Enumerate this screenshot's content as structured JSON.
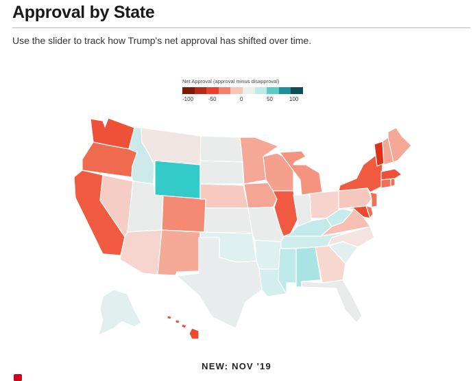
{
  "header": {
    "title": "Approval by State",
    "subtitle": "Use the slider to track how Trump's net approval has shifted over time."
  },
  "legend": {
    "title": "Net Approval (approval minus disapproval)",
    "ticks": [
      "-100",
      "-50",
      "0",
      "50",
      "100"
    ],
    "colors": [
      "#7a1a0c",
      "#b52a15",
      "#e8402a",
      "#f4806a",
      "#f8c4b8",
      "#eeeeee",
      "#bfe8e8",
      "#5cc9c9",
      "#1f8f95",
      "#0d4d55"
    ]
  },
  "map": {
    "date_label": "NEW: NOV '19",
    "states": [
      {
        "code": "WA",
        "color": "#ef5038"
      },
      {
        "code": "OR",
        "color": "#f06a50"
      },
      {
        "code": "CA",
        "color": "#f05a40"
      },
      {
        "code": "ID",
        "color": "#cdeaea"
      },
      {
        "code": "NV",
        "color": "#f6cdc5"
      },
      {
        "code": "MT",
        "color": "#efe5e3"
      },
      {
        "code": "WY",
        "color": "#33cbca"
      },
      {
        "code": "UT",
        "color": "#e9ebeb"
      },
      {
        "code": "AZ",
        "color": "#f6d5ce"
      },
      {
        "code": "CO",
        "color": "#f48a74"
      },
      {
        "code": "NM",
        "color": "#f5aa98"
      },
      {
        "code": "ND",
        "color": "#eaecec"
      },
      {
        "code": "SD",
        "color": "#eaecec"
      },
      {
        "code": "NE",
        "color": "#f6cabf"
      },
      {
        "code": "KS",
        "color": "#eaecec"
      },
      {
        "code": "OK",
        "color": "#dff0f0"
      },
      {
        "code": "TX",
        "color": "#e9ecec"
      },
      {
        "code": "MN",
        "color": "#f6a896"
      },
      {
        "code": "IA",
        "color": "#f5a594"
      },
      {
        "code": "MO",
        "color": "#eaecec"
      },
      {
        "code": "AR",
        "color": "#dff0f0"
      },
      {
        "code": "LA",
        "color": "#d3eeee"
      },
      {
        "code": "WI",
        "color": "#f5a08d"
      },
      {
        "code": "IL",
        "color": "#f05a40"
      },
      {
        "code": "MI",
        "color": "#f4937e"
      },
      {
        "code": "IN",
        "color": "#e9ebeb"
      },
      {
        "code": "OH",
        "color": "#f6d3cc"
      },
      {
        "code": "KY",
        "color": "#c3eaea"
      },
      {
        "code": "TN",
        "color": "#cdeded"
      },
      {
        "code": "MS",
        "color": "#bfe8e8"
      },
      {
        "code": "AL",
        "color": "#a9e3e3"
      },
      {
        "code": "GA",
        "color": "#f6d8d1"
      },
      {
        "code": "FL",
        "color": "#e9ebeb"
      },
      {
        "code": "SC",
        "color": "#e3eeee"
      },
      {
        "code": "NC",
        "color": "#f4e4e1"
      },
      {
        "code": "VA",
        "color": "#f5bfb3"
      },
      {
        "code": "WV",
        "color": "#c6ebeb"
      },
      {
        "code": "PA",
        "color": "#f6c8bd"
      },
      {
        "code": "NY",
        "color": "#f05a40"
      },
      {
        "code": "NJ",
        "color": "#f07055"
      },
      {
        "code": "MD",
        "color": "#ee4a30"
      },
      {
        "code": "DE",
        "color": "#f07055"
      },
      {
        "code": "CT",
        "color": "#f07055"
      },
      {
        "code": "RI",
        "color": "#f07055"
      },
      {
        "code": "MA",
        "color": "#ee5038"
      },
      {
        "code": "VT",
        "color": "#e0301a"
      },
      {
        "code": "NH",
        "color": "#f5a694"
      },
      {
        "code": "ME",
        "color": "#f5a896"
      },
      {
        "code": "AK",
        "color": "#e0eeee"
      },
      {
        "code": "HI",
        "color": "#ee4a30"
      }
    ]
  },
  "slider": {
    "handle_color": "#d0021b"
  }
}
